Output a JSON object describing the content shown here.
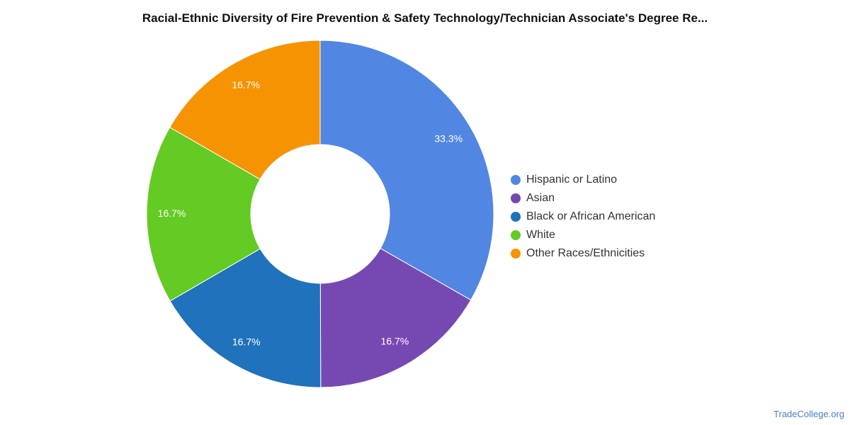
{
  "chart_data": {
    "type": "pie",
    "title": "Racial-Ethnic Diversity of Fire Prevention & Safety Technology/Technician Associate's Degree Re...",
    "donut": true,
    "legend_position": "right",
    "slices": [
      {
        "label": "Hispanic or Latino",
        "value": 33.3,
        "value_label": "33.3%",
        "color": "#5286E3"
      },
      {
        "label": "Asian",
        "value": 16.7,
        "value_label": "16.7%",
        "color": "#7649B2"
      },
      {
        "label": "Black or African American",
        "value": 16.7,
        "value_label": "16.7%",
        "color": "#1F72BB"
      },
      {
        "label": "White",
        "value": 16.7,
        "value_label": "16.7%",
        "color": "#63CB23"
      },
      {
        "label": "Other Races/Ethnicities",
        "value": 16.7,
        "value_label": "16.7%",
        "color": "#F69302"
      }
    ]
  },
  "watermark": "TradeCollege.org"
}
